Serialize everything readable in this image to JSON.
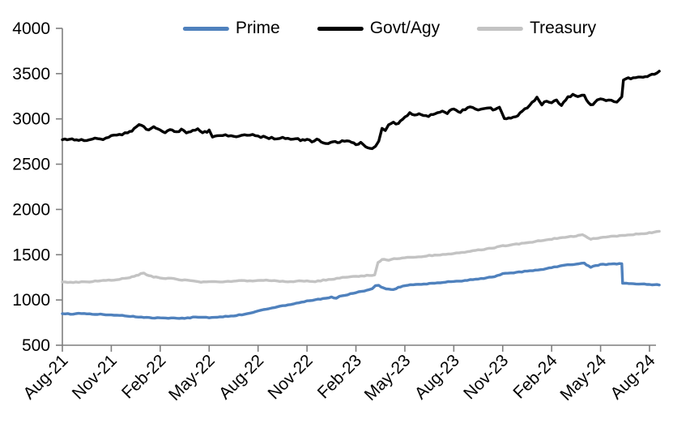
{
  "chart_data": {
    "type": "line",
    "title": "",
    "grid": false,
    "legend_position": "top",
    "x_axis": {
      "unit": "months since Aug-2021",
      "range_months": [
        0,
        36.6
      ],
      "tick_interval_months": 3,
      "label_rotation_deg": -45,
      "tick_labels": [
        "Aug-21",
        "Nov-21",
        "Feb-22",
        "May-22",
        "Aug-22",
        "Nov-22",
        "Feb-23",
        "May-23",
        "Aug-23",
        "Nov-23",
        "Feb-24",
        "May-24",
        "Aug-24"
      ]
    },
    "y_axis": {
      "min": 500,
      "max": 4000,
      "tick_step": 500,
      "ticks": [
        500,
        1000,
        1500,
        2000,
        2500,
        3000,
        3500,
        4000
      ]
    },
    "colors": {
      "axis": "#7F7F7F",
      "text": "#000000"
    },
    "series": [
      {
        "name": "Prime",
        "color": "#4F81BD",
        "jitter": 4,
        "points": [
          [
            0,
            852
          ],
          [
            0.5,
            845
          ],
          [
            1,
            850
          ],
          [
            1.5,
            846
          ],
          [
            2,
            843
          ],
          [
            2.5,
            840
          ],
          [
            3,
            836
          ],
          [
            3.5,
            830
          ],
          [
            4,
            822
          ],
          [
            4.5,
            815
          ],
          [
            5,
            808
          ],
          [
            5.5,
            800
          ],
          [
            6,
            803
          ],
          [
            6.5,
            799
          ],
          [
            7,
            797
          ],
          [
            7.5,
            795
          ],
          [
            8,
            808
          ],
          [
            8.5,
            812
          ],
          [
            9,
            806
          ],
          [
            9.5,
            812
          ],
          [
            10,
            818
          ],
          [
            10.5,
            824
          ],
          [
            11,
            838
          ],
          [
            11.5,
            856
          ],
          [
            12,
            880
          ],
          [
            12.5,
            900
          ],
          [
            13,
            918
          ],
          [
            13.5,
            934
          ],
          [
            14,
            950
          ],
          [
            14.5,
            968
          ],
          [
            15,
            988
          ],
          [
            15.5,
            1002
          ],
          [
            16,
            1016
          ],
          [
            16.5,
            1030
          ],
          [
            16.8,
            1022
          ],
          [
            17,
            1040
          ],
          [
            17.5,
            1060
          ],
          [
            18,
            1080
          ],
          [
            18.5,
            1102
          ],
          [
            19,
            1125
          ],
          [
            19.2,
            1155
          ],
          [
            19.4,
            1160
          ],
          [
            19.7,
            1130
          ],
          [
            20,
            1122
          ],
          [
            20.3,
            1112
          ],
          [
            20.6,
            1140
          ],
          [
            21,
            1158
          ],
          [
            21.5,
            1168
          ],
          [
            22,
            1174
          ],
          [
            22.5,
            1180
          ],
          [
            23,
            1188
          ],
          [
            23.5,
            1198
          ],
          [
            24,
            1205
          ],
          [
            24.5,
            1212
          ],
          [
            25,
            1222
          ],
          [
            25.5,
            1234
          ],
          [
            26,
            1244
          ],
          [
            26.5,
            1256
          ],
          [
            27,
            1288
          ],
          [
            27.5,
            1298
          ],
          [
            28,
            1308
          ],
          [
            28.5,
            1318
          ],
          [
            29,
            1328
          ],
          [
            29.5,
            1340
          ],
          [
            30,
            1358
          ],
          [
            30.5,
            1374
          ],
          [
            31,
            1388
          ],
          [
            31.5,
            1398
          ],
          [
            32,
            1405
          ],
          [
            32.4,
            1362
          ],
          [
            32.7,
            1380
          ],
          [
            33,
            1390
          ],
          [
            33.5,
            1394
          ],
          [
            34,
            1398
          ],
          [
            34.3,
            1400
          ],
          [
            34.35,
            1188
          ],
          [
            34.6,
            1185
          ],
          [
            35,
            1180
          ],
          [
            35.5,
            1176
          ],
          [
            36,
            1170
          ],
          [
            36.6,
            1168
          ]
        ]
      },
      {
        "name": "Govt/Agy",
        "color": "#000000",
        "jitter": 11,
        "points": [
          [
            0,
            2780
          ],
          [
            0.3,
            2760
          ],
          [
            0.6,
            2775
          ],
          [
            1,
            2770
          ],
          [
            1.5,
            2765
          ],
          [
            2,
            2790
          ],
          [
            2.5,
            2782
          ],
          [
            3,
            2808
          ],
          [
            3.5,
            2824
          ],
          [
            4,
            2848
          ],
          [
            4.4,
            2885
          ],
          [
            4.7,
            2938
          ],
          [
            5,
            2905
          ],
          [
            5.3,
            2868
          ],
          [
            5.6,
            2905
          ],
          [
            6,
            2878
          ],
          [
            6.3,
            2848
          ],
          [
            6.6,
            2888
          ],
          [
            7,
            2858
          ],
          [
            7.3,
            2878
          ],
          [
            7.6,
            2843
          ],
          [
            8,
            2868
          ],
          [
            8.3,
            2880
          ],
          [
            8.6,
            2850
          ],
          [
            9,
            2868
          ],
          [
            9.2,
            2800
          ],
          [
            9.5,
            2812
          ],
          [
            10,
            2820
          ],
          [
            10.5,
            2800
          ],
          [
            11,
            2815
          ],
          [
            11.5,
            2825
          ],
          [
            12,
            2810
          ],
          [
            12.5,
            2795
          ],
          [
            13,
            2785
          ],
          [
            13.5,
            2798
          ],
          [
            14,
            2770
          ],
          [
            14.3,
            2788
          ],
          [
            14.6,
            2760
          ],
          [
            15,
            2775
          ],
          [
            15.3,
            2748
          ],
          [
            15.6,
            2768
          ],
          [
            16,
            2745
          ],
          [
            16.3,
            2730
          ],
          [
            16.6,
            2758
          ],
          [
            17,
            2740
          ],
          [
            17.3,
            2762
          ],
          [
            17.6,
            2748
          ],
          [
            18,
            2720
          ],
          [
            18.3,
            2738
          ],
          [
            18.6,
            2688
          ],
          [
            19,
            2662
          ],
          [
            19.2,
            2688
          ],
          [
            19.4,
            2758
          ],
          [
            19.6,
            2895
          ],
          [
            19.8,
            2878
          ],
          [
            20,
            2928
          ],
          [
            20.3,
            2962
          ],
          [
            20.6,
            2940
          ],
          [
            21,
            3028
          ],
          [
            21.3,
            3062
          ],
          [
            21.6,
            3040
          ],
          [
            22,
            3052
          ],
          [
            22.3,
            3028
          ],
          [
            22.6,
            3045
          ],
          [
            23,
            3058
          ],
          [
            23.3,
            3082
          ],
          [
            23.6,
            3068
          ],
          [
            24,
            3108
          ],
          [
            24.4,
            3075
          ],
          [
            24.7,
            3110
          ],
          [
            25,
            3125
          ],
          [
            25.5,
            3095
          ],
          [
            26,
            3128
          ],
          [
            26.4,
            3108
          ],
          [
            26.8,
            3128
          ],
          [
            27.1,
            3010
          ],
          [
            27.5,
            3005
          ],
          [
            27.8,
            3020
          ],
          [
            28.2,
            3090
          ],
          [
            28.5,
            3130
          ],
          [
            28.8,
            3175
          ],
          [
            29.1,
            3235
          ],
          [
            29.4,
            3160
          ],
          [
            29.7,
            3200
          ],
          [
            30,
            3185
          ],
          [
            30.3,
            3205
          ],
          [
            30.6,
            3155
          ],
          [
            31,
            3240
          ],
          [
            31.3,
            3262
          ],
          [
            31.6,
            3248
          ],
          [
            32,
            3258
          ],
          [
            32.4,
            3148
          ],
          [
            32.8,
            3205
          ],
          [
            33,
            3218
          ],
          [
            33.5,
            3208
          ],
          [
            34,
            3180
          ],
          [
            34.3,
            3255
          ],
          [
            34.4,
            3440
          ],
          [
            34.7,
            3452
          ],
          [
            35,
            3448
          ],
          [
            35.3,
            3462
          ],
          [
            35.6,
            3455
          ],
          [
            36,
            3478
          ],
          [
            36.3,
            3492
          ],
          [
            36.6,
            3518
          ]
        ]
      },
      {
        "name": "Treasury",
        "color": "#C3C3C3",
        "jitter": 5,
        "points": [
          [
            0,
            1200
          ],
          [
            0.5,
            1192
          ],
          [
            1,
            1196
          ],
          [
            1.5,
            1200
          ],
          [
            2,
            1208
          ],
          [
            2.5,
            1214
          ],
          [
            3,
            1220
          ],
          [
            3.5,
            1230
          ],
          [
            4,
            1242
          ],
          [
            4.4,
            1258
          ],
          [
            4.8,
            1288
          ],
          [
            5,
            1295
          ],
          [
            5.3,
            1268
          ],
          [
            5.6,
            1252
          ],
          [
            6,
            1245
          ],
          [
            6.5,
            1238
          ],
          [
            7,
            1230
          ],
          [
            7.5,
            1218
          ],
          [
            8,
            1210
          ],
          [
            8.5,
            1200
          ],
          [
            9,
            1205
          ],
          [
            9.5,
            1198
          ],
          [
            10,
            1202
          ],
          [
            10.5,
            1208
          ],
          [
            11,
            1212
          ],
          [
            11.5,
            1208
          ],
          [
            12,
            1215
          ],
          [
            12.5,
            1220
          ],
          [
            13,
            1212
          ],
          [
            13.5,
            1205
          ],
          [
            14,
            1200
          ],
          [
            14.5,
            1208
          ],
          [
            15,
            1212
          ],
          [
            15.5,
            1205
          ],
          [
            16,
            1218
          ],
          [
            16.5,
            1228
          ],
          [
            17,
            1242
          ],
          [
            17.5,
            1252
          ],
          [
            18,
            1262
          ],
          [
            18.5,
            1268
          ],
          [
            19,
            1275
          ],
          [
            19.15,
            1280
          ],
          [
            19.35,
            1415
          ],
          [
            19.6,
            1448
          ],
          [
            20,
            1442
          ],
          [
            20.5,
            1458
          ],
          [
            21,
            1468
          ],
          [
            21.5,
            1474
          ],
          [
            22,
            1480
          ],
          [
            22.5,
            1490
          ],
          [
            23,
            1498
          ],
          [
            23.5,
            1505
          ],
          [
            24,
            1512
          ],
          [
            24.5,
            1522
          ],
          [
            25,
            1538
          ],
          [
            25.5,
            1552
          ],
          [
            26,
            1562
          ],
          [
            26.5,
            1578
          ],
          [
            27,
            1598
          ],
          [
            27.5,
            1608
          ],
          [
            28,
            1618
          ],
          [
            28.5,
            1632
          ],
          [
            29,
            1648
          ],
          [
            29.5,
            1662
          ],
          [
            30,
            1672
          ],
          [
            30.5,
            1688
          ],
          [
            31,
            1698
          ],
          [
            31.5,
            1708
          ],
          [
            31.9,
            1718
          ],
          [
            32.2,
            1688
          ],
          [
            32.4,
            1672
          ],
          [
            32.7,
            1682
          ],
          [
            33,
            1690
          ],
          [
            33.5,
            1700
          ],
          [
            34,
            1708
          ],
          [
            34.5,
            1714
          ],
          [
            35,
            1722
          ],
          [
            35.5,
            1732
          ],
          [
            36,
            1742
          ],
          [
            36.6,
            1756
          ]
        ]
      }
    ]
  }
}
